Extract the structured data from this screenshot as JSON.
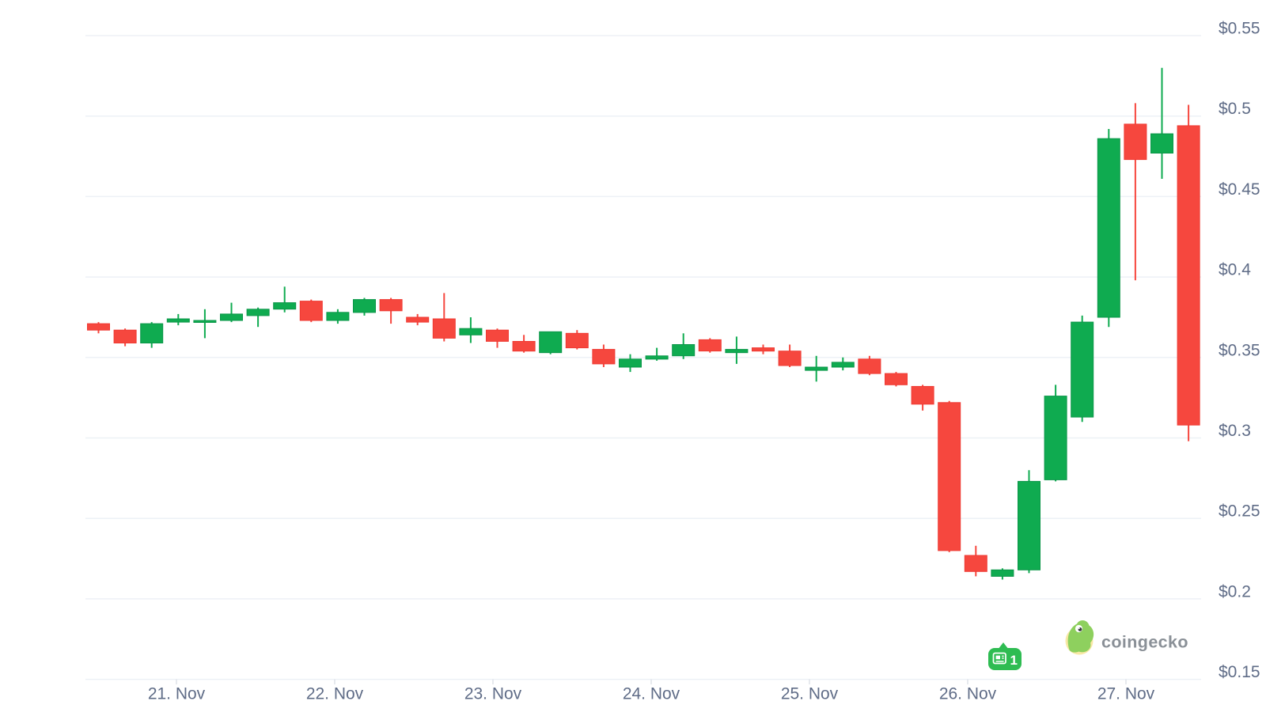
{
  "chart_data": {
    "type": "candlestick",
    "title": "",
    "interval": "4h",
    "currency_prefix": "$",
    "grid": true,
    "legend_position": "none",
    "ylim": [
      0.15,
      0.55
    ],
    "y_ticks": [
      0.55,
      0.5,
      0.45,
      0.4,
      0.35,
      0.3,
      0.25,
      0.2,
      0.15
    ],
    "y_tick_labels": [
      "$0.55",
      "$0.5",
      "$0.45",
      "$0.4",
      "$0.35",
      "$0.3",
      "$0.25",
      "$0.2",
      "$0.15"
    ],
    "x_tick_labels": [
      "21. Nov",
      "22. Nov",
      "23. Nov",
      "24. Nov",
      "25. Nov",
      "26. Nov",
      "27. Nov"
    ],
    "candles": [
      {
        "t": "20 Nov 12:00",
        "o": 0.371,
        "h": 0.372,
        "l": 0.365,
        "c": 0.367
      },
      {
        "t": "20 Nov 16:00",
        "o": 0.367,
        "h": 0.368,
        "l": 0.357,
        "c": 0.359
      },
      {
        "t": "20 Nov 20:00",
        "o": 0.359,
        "h": 0.372,
        "l": 0.356,
        "c": 0.371
      },
      {
        "t": "21 Nov 00:00",
        "o": 0.372,
        "h": 0.377,
        "l": 0.37,
        "c": 0.374
      },
      {
        "t": "21 Nov 04:00",
        "o": 0.372,
        "h": 0.38,
        "l": 0.362,
        "c": 0.373
      },
      {
        "t": "21 Nov 08:00",
        "o": 0.373,
        "h": 0.384,
        "l": 0.372,
        "c": 0.377
      },
      {
        "t": "21 Nov 12:00",
        "o": 0.376,
        "h": 0.381,
        "l": 0.369,
        "c": 0.38
      },
      {
        "t": "21 Nov 16:00",
        "o": 0.38,
        "h": 0.394,
        "l": 0.378,
        "c": 0.384
      },
      {
        "t": "21 Nov 20:00",
        "o": 0.385,
        "h": 0.386,
        "l": 0.372,
        "c": 0.373
      },
      {
        "t": "22 Nov 00:00",
        "o": 0.373,
        "h": 0.38,
        "l": 0.371,
        "c": 0.378
      },
      {
        "t": "22 Nov 04:00",
        "o": 0.378,
        "h": 0.387,
        "l": 0.376,
        "c": 0.386
      },
      {
        "t": "22 Nov 08:00",
        "o": 0.386,
        "h": 0.387,
        "l": 0.371,
        "c": 0.379
      },
      {
        "t": "22 Nov 12:00",
        "o": 0.375,
        "h": 0.377,
        "l": 0.37,
        "c": 0.372
      },
      {
        "t": "22 Nov 16:00",
        "o": 0.374,
        "h": 0.39,
        "l": 0.36,
        "c": 0.362
      },
      {
        "t": "22 Nov 20:00",
        "o": 0.364,
        "h": 0.375,
        "l": 0.359,
        "c": 0.368
      },
      {
        "t": "23 Nov 00:00",
        "o": 0.367,
        "h": 0.368,
        "l": 0.356,
        "c": 0.36
      },
      {
        "t": "23 Nov 04:00",
        "o": 0.36,
        "h": 0.364,
        "l": 0.353,
        "c": 0.354
      },
      {
        "t": "23 Nov 08:00",
        "o": 0.353,
        "h": 0.366,
        "l": 0.352,
        "c": 0.366
      },
      {
        "t": "23 Nov 12:00",
        "o": 0.365,
        "h": 0.367,
        "l": 0.355,
        "c": 0.356
      },
      {
        "t": "23 Nov 16:00",
        "o": 0.355,
        "h": 0.358,
        "l": 0.344,
        "c": 0.346
      },
      {
        "t": "23 Nov 20:00",
        "o": 0.344,
        "h": 0.352,
        "l": 0.341,
        "c": 0.349
      },
      {
        "t": "24 Nov 00:00",
        "o": 0.349,
        "h": 0.356,
        "l": 0.348,
        "c": 0.351
      },
      {
        "t": "24 Nov 04:00",
        "o": 0.351,
        "h": 0.365,
        "l": 0.349,
        "c": 0.358
      },
      {
        "t": "24 Nov 08:00",
        "o": 0.361,
        "h": 0.362,
        "l": 0.353,
        "c": 0.354
      },
      {
        "t": "24 Nov 12:00",
        "o": 0.353,
        "h": 0.363,
        "l": 0.346,
        "c": 0.355
      },
      {
        "t": "24 Nov 16:00",
        "o": 0.356,
        "h": 0.358,
        "l": 0.352,
        "c": 0.354
      },
      {
        "t": "24 Nov 20:00",
        "o": 0.354,
        "h": 0.358,
        "l": 0.344,
        "c": 0.345
      },
      {
        "t": "25 Nov 00:00",
        "o": 0.342,
        "h": 0.351,
        "l": 0.335,
        "c": 0.344
      },
      {
        "t": "25 Nov 04:00",
        "o": 0.344,
        "h": 0.35,
        "l": 0.342,
        "c": 0.347
      },
      {
        "t": "25 Nov 08:00",
        "o": 0.349,
        "h": 0.351,
        "l": 0.339,
        "c": 0.34
      },
      {
        "t": "25 Nov 12:00",
        "o": 0.34,
        "h": 0.341,
        "l": 0.332,
        "c": 0.333
      },
      {
        "t": "25 Nov 16:00",
        "o": 0.332,
        "h": 0.333,
        "l": 0.317,
        "c": 0.321
      },
      {
        "t": "25 Nov 20:00",
        "o": 0.322,
        "h": 0.323,
        "l": 0.229,
        "c": 0.23
      },
      {
        "t": "26 Nov 00:00",
        "o": 0.227,
        "h": 0.233,
        "l": 0.214,
        "c": 0.217
      },
      {
        "t": "26 Nov 04:00",
        "o": 0.214,
        "h": 0.219,
        "l": 0.212,
        "c": 0.218
      },
      {
        "t": "26 Nov 08:00",
        "o": 0.218,
        "h": 0.28,
        "l": 0.216,
        "c": 0.273
      },
      {
        "t": "26 Nov 12:00",
        "o": 0.274,
        "h": 0.333,
        "l": 0.273,
        "c": 0.326
      },
      {
        "t": "26 Nov 16:00",
        "o": 0.313,
        "h": 0.376,
        "l": 0.31,
        "c": 0.372
      },
      {
        "t": "26 Nov 20:00",
        "o": 0.375,
        "h": 0.492,
        "l": 0.369,
        "c": 0.486
      },
      {
        "t": "27 Nov 00:00",
        "o": 0.495,
        "h": 0.508,
        "l": 0.398,
        "c": 0.473
      },
      {
        "t": "27 Nov 04:00",
        "o": 0.477,
        "h": 0.53,
        "l": 0.461,
        "c": 0.489
      },
      {
        "t": "27 Nov 08:00",
        "o": 0.494,
        "h": 0.507,
        "l": 0.298,
        "c": 0.308
      }
    ],
    "colors": {
      "up": "#0fab50",
      "up_border": "#0a9648",
      "down": "#f6473e",
      "down_border": "#ef3a33",
      "grid": "#edf1f6",
      "tick": "#dfe3e9",
      "axis_label": "#5f6c87"
    }
  },
  "annotations": {
    "news_badge": {
      "label": "1",
      "icon": "newspaper-icon",
      "color": "#2ebc52",
      "text_color": "#ffffff"
    }
  },
  "watermark": {
    "text": "coingecko",
    "text_color": "#8a9097",
    "logo_circle_color": "#f8e8a5",
    "logo_body_color": "#8ed05e"
  }
}
